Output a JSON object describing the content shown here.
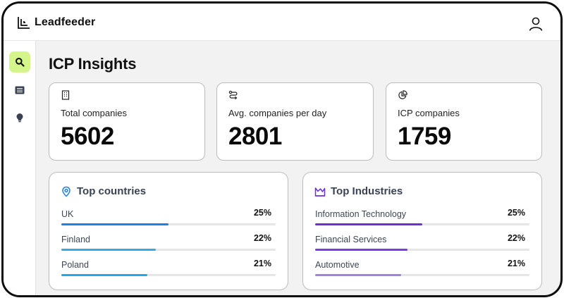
{
  "app": {
    "brand": "Leadfeeder"
  },
  "page": {
    "title": "ICP Insights"
  },
  "nav": [
    {
      "icon": "search-icon",
      "active": true
    },
    {
      "icon": "list-icon",
      "active": false
    },
    {
      "icon": "lightbulb-icon",
      "active": false
    }
  ],
  "stats": [
    {
      "icon": "building-icon",
      "label": "Total companies",
      "value": "5602"
    },
    {
      "icon": "route-icon",
      "label": "Avg. companies per day",
      "value": "2801"
    },
    {
      "icon": "pie-chart-icon",
      "label": "ICP companies",
      "value": "1759"
    }
  ],
  "top_countries": {
    "icon": "location-pin-icon",
    "title": "Top countries",
    "items": [
      {
        "name": "UK",
        "percent": "25%",
        "share": 0.5,
        "color": "#1f7fe0"
      },
      {
        "name": "Finland",
        "percent": "22%",
        "share": 0.44,
        "color": "#34a9ea"
      },
      {
        "name": "Poland",
        "percent": "21%",
        "share": 0.4,
        "color": "#22a9e5"
      }
    ]
  },
  "top_industries": {
    "icon": "industry-icon",
    "title": "Top Industries",
    "items": [
      {
        "name": "Information Technology",
        "percent": "25%",
        "share": 0.5,
        "color": "#6b2fd6"
      },
      {
        "name": "Financial Services",
        "percent": "22%",
        "share": 0.43,
        "color": "#7a3be0"
      },
      {
        "name": "Automotive",
        "percent": "21%",
        "share": 0.4,
        "color": "#a180ea"
      }
    ]
  },
  "colors": {
    "active_nav": "#d4f58a",
    "countries_accent": "#1f7fe0",
    "industries_accent": "#6b2fd6"
  }
}
